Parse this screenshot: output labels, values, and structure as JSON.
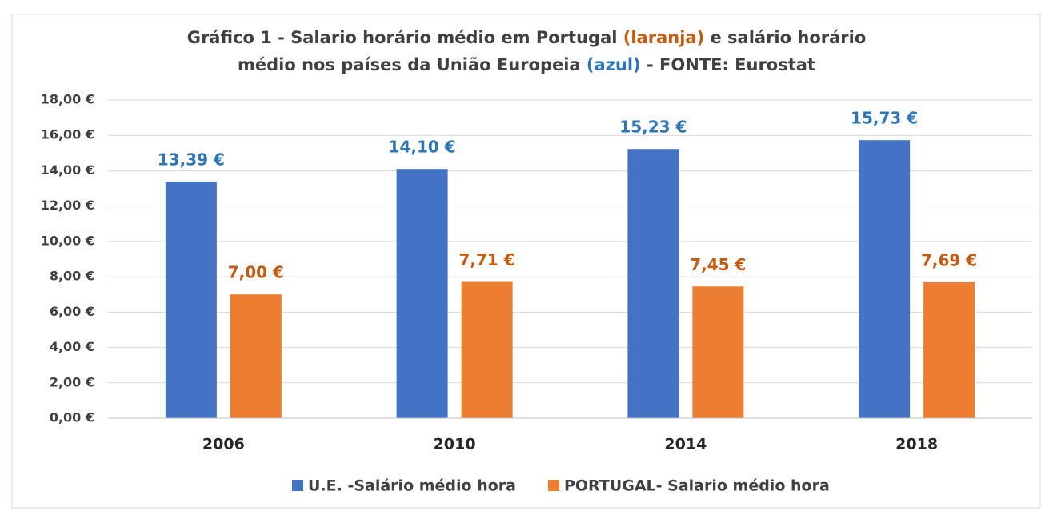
{
  "chart_data": {
    "type": "bar",
    "title": [
      [
        {
          "text": "Gráfico 1 - Salario horário médio em Portugal "
        },
        {
          "text": "(laranja)",
          "color": "#c55a11"
        },
        {
          "text": " e salário  horário"
        }
      ],
      [
        {
          "text": "médio nos países da União Europeia "
        },
        {
          "text": "(azul)",
          "color": "#2e75b6"
        },
        {
          "text": " - FONTE: Eurostat"
        }
      ]
    ],
    "categories": [
      "2006",
      "2010",
      "2014",
      "2018"
    ],
    "series": [
      {
        "name": "U.E. -Salário médio hora",
        "color": "#4472c4",
        "label_color": "#2e75b6",
        "values": [
          13.39,
          14.1,
          15.23,
          15.73
        ],
        "value_labels": [
          "13,39 €",
          "14,10 €",
          "15,23 €",
          "15,73 €"
        ]
      },
      {
        "name": "PORTUGAL- Salario médio hora",
        "color": "#ed7d31",
        "label_color": "#c55a11",
        "values": [
          7.0,
          7.71,
          7.45,
          7.69
        ],
        "value_labels": [
          "7,00 €",
          "7,71 €",
          "7,45 €",
          "7,69 €"
        ]
      }
    ],
    "ylim": [
      0,
      18
    ],
    "yticks": [
      {
        "value": 0,
        "label": "0,00 €"
      },
      {
        "value": 2,
        "label": "2,00 €"
      },
      {
        "value": 4,
        "label": "4,00 €"
      },
      {
        "value": 6,
        "label": "6,00 €"
      },
      {
        "value": 8,
        "label": "8,00 €"
      },
      {
        "value": 10,
        "label": "10,00 €"
      },
      {
        "value": 12,
        "label": "12,00 €"
      },
      {
        "value": 14,
        "label": "14,00 €"
      },
      {
        "value": 16,
        "label": "16,00 €"
      },
      {
        "value": 18,
        "label": "18,00 €"
      }
    ],
    "grid": true,
    "legend": "bottom"
  }
}
